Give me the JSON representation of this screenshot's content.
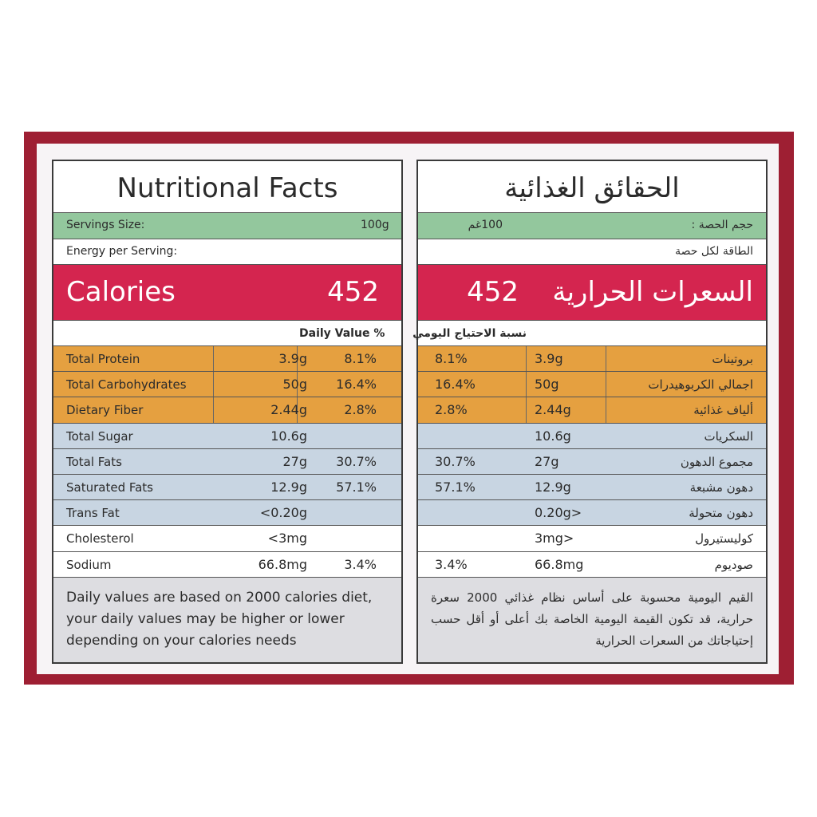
{
  "left": {
    "title": "Nutritional Facts",
    "servings_label": "Servings Size:",
    "servings_value": "100g",
    "energy_label": "Energy per Serving:",
    "calories_label": "Calories",
    "calories_value": "452",
    "daily_value_label": "Daily Value %",
    "rows": [
      [
        "Total Protein",
        "3.9g",
        "8.1%"
      ],
      [
        "Total Carbohydrates",
        "50g",
        "16.4%"
      ],
      [
        "Dietary Fiber",
        "2.44g",
        "2.8%"
      ],
      [
        "Total Sugar",
        "10.6g"
      ],
      [
        "Total Fats",
        "27g",
        "30.7%"
      ],
      [
        "Saturated Fats",
        "12.9g",
        "57.1%"
      ],
      [
        "Trans Fat",
        "<0.20g"
      ],
      [
        "Cholesterol",
        "<3mg"
      ],
      [
        "Sodium",
        "66.8mg",
        "3.4%"
      ]
    ],
    "footnote": "Daily values are based on 2000 calories diet, your daily values may be higher or lower depending on your calories needs"
  },
  "right": {
    "title": "الحقائق الغذائية",
    "servings_label": "حجم الحصة :",
    "servings_value": "100غم",
    "energy_label": "الطاقة لكل حصة",
    "calories_label": "السعرات الحرارية",
    "calories_value": "452",
    "daily_value_label": "نسبة الاحتياج اليومي",
    "rows": [
      [
        "بروتينات",
        "3.9g",
        "8.1%"
      ],
      [
        "اجمالي الكربوهيدرات",
        "50g",
        "16.4%"
      ],
      [
        "ألياف غذائية",
        "2.44g",
        "2.8%"
      ],
      [
        "السكريات",
        "10.6g"
      ],
      [
        "مجموع الدهون",
        "27g",
        "30.7%"
      ],
      [
        "دهون مشبعة",
        "12.9g",
        "57.1%"
      ],
      [
        "دهون متحولة",
        "<0.20g"
      ],
      [
        "كوليستيرول",
        "<3mg"
      ],
      [
        "صوديوم",
        "66.8mg",
        "3.4%"
      ]
    ],
    "footnote": "القيم اليومية محسوبة على أساس نظام غذائي 2000 سعرة حرارية، قد تكون القيمة اليومية الخاصة بك أعلى أو أقل حسب إحتياجاتك من السعرات الحرارية"
  }
}
